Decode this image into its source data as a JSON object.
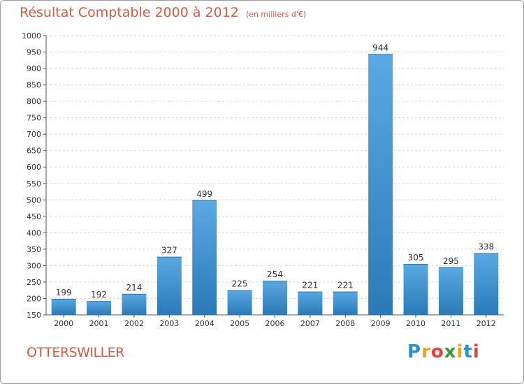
{
  "chart_data": {
    "type": "bar",
    "title": "Résultat Comptable 2000 à 2012",
    "subtitle": "(en milliers d'€)",
    "location": "OTTERSWILLER",
    "categories": [
      "2000",
      "2001",
      "2002",
      "2003",
      "2004",
      "2005",
      "2006",
      "2007",
      "2008",
      "2009",
      "2010",
      "2011",
      "2012"
    ],
    "values": [
      199,
      192,
      214,
      327,
      499,
      225,
      254,
      221,
      221,
      944,
      305,
      295,
      338
    ],
    "ylim": [
      150,
      1000
    ],
    "yticks": [
      150,
      200,
      250,
      300,
      350,
      400,
      450,
      500,
      550,
      600,
      650,
      700,
      750,
      800,
      850,
      900,
      950,
      1000
    ],
    "grid": true,
    "bar_color_light": "#5aa9e3",
    "bar_color_dark": "#2a7ab8"
  },
  "brand": {
    "letters": [
      "P",
      "r",
      "o",
      "x",
      "i",
      "t",
      "i"
    ],
    "colors": [
      "#2a8fd6",
      "#f0a020",
      "#e8413a",
      "#3c9a3a",
      "#f0a020",
      "#2a8fd6",
      "#e8413a"
    ]
  }
}
